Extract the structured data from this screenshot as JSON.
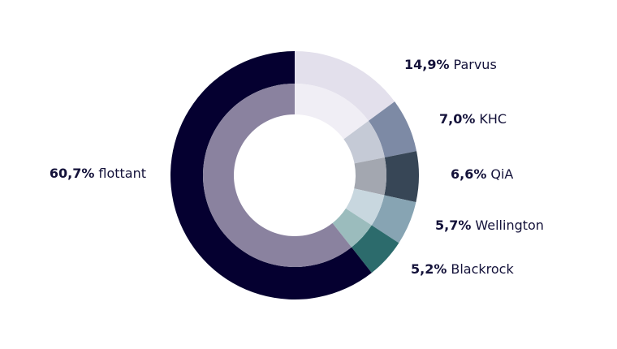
{
  "chart_data": {
    "type": "donut",
    "categories": [
      "Parvus",
      "KHC",
      "QiA",
      "Wellington",
      "Blackrock",
      "flottant"
    ],
    "values": [
      14.9,
      7.0,
      6.6,
      5.7,
      5.2,
      60.7
    ],
    "value_labels": [
      "14,9%",
      "7,0%",
      "6,6%",
      "5,7%",
      "5,2%",
      "60,7%"
    ],
    "colors": [
      "#e3e0ec",
      "#7d8aa5",
      "#374656",
      "#87a4b3",
      "#2c6b6c",
      "#050030"
    ],
    "inner_colors": [
      "#f0eef5",
      "#c5cad6",
      "#a3a7b0",
      "#c8d7df",
      "#9bbcbd",
      "#8a829f"
    ]
  }
}
